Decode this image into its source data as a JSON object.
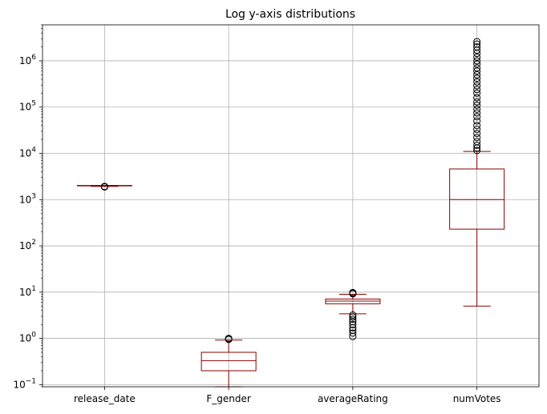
{
  "chart_data": {
    "type": "box",
    "title": "Log y-axis distributions",
    "xlabel": "",
    "ylabel": "",
    "yscale": "log",
    "ylim": [
      0.09,
      6000000
    ],
    "grid": true,
    "box_color": "#8b0000",
    "flier_color": "#000000",
    "categories": [
      "release_date",
      "F_gender",
      "averageRating",
      "numVotes"
    ],
    "y_ticks": [
      {
        "value": 0.1,
        "base": "10",
        "exp": "−1"
      },
      {
        "value": 1,
        "base": "10",
        "exp": "0"
      },
      {
        "value": 10,
        "base": "10",
        "exp": "1"
      },
      {
        "value": 100,
        "base": "10",
        "exp": "2"
      },
      {
        "value": 1000,
        "base": "10",
        "exp": "3"
      },
      {
        "value": 10000,
        "base": "10",
        "exp": "4"
      },
      {
        "value": 100000,
        "base": "10",
        "exp": "5"
      },
      {
        "value": 1000000,
        "base": "10",
        "exp": "6"
      }
    ],
    "boxes": [
      {
        "name": "release_date",
        "whisker_low": 1930,
        "q1": 1990,
        "median": 2010,
        "q3": 2020,
        "whisker_high": 2025,
        "fliers_low": [
          1880,
          1900,
          1915,
          1925
        ],
        "fliers_high": []
      },
      {
        "name": "F_gender",
        "whisker_low": 0.09,
        "q1": 0.2,
        "median": 0.33,
        "q3": 0.5,
        "whisker_high": 0.92,
        "fliers_low": [],
        "fliers_high": [
          0.95,
          0.98,
          1.0
        ]
      },
      {
        "name": "averageRating",
        "whisker_low": 3.4,
        "q1": 5.6,
        "median": 6.4,
        "q3": 7.1,
        "whisker_high": 9.0,
        "fliers_low": [
          1.1,
          1.3,
          1.5,
          1.7,
          2.0,
          2.3,
          2.6,
          2.9,
          3.2
        ],
        "fliers_high": [
          9.2,
          9.5,
          9.8
        ]
      },
      {
        "name": "numVotes",
        "whisker_low": 5,
        "q1": 230,
        "median": 1000,
        "q3": 4600,
        "whisker_high": 11000,
        "fliers_low": [],
        "fliers_high": [
          11500,
          13000,
          15000,
          18000,
          22000,
          27000,
          33000,
          40000,
          50000,
          62000,
          75000,
          90000,
          110000,
          130000,
          160000,
          200000,
          240000,
          290000,
          350000,
          420000,
          500000,
          600000,
          700000,
          850000,
          1000000,
          1200000,
          1450000,
          1700000,
          2000000,
          2300000,
          2600000
        ]
      }
    ]
  }
}
